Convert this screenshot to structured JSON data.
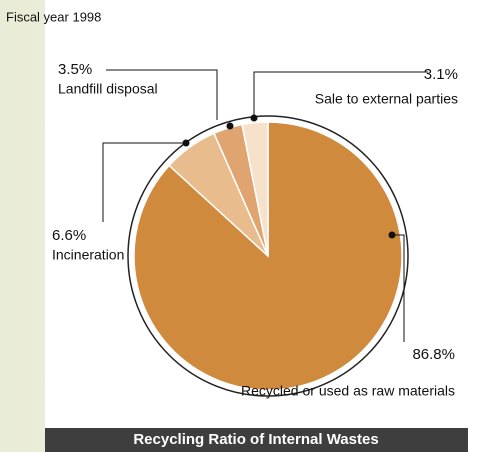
{
  "chart_data": {
    "type": "pie",
    "title": "Recycling Ratio of Internal Wastes",
    "subtitle": "Fiscal year 1998",
    "categories": [
      "Recycled or used as raw materials",
      "Incineration",
      "Landfill disposal",
      "Sale to external parties"
    ],
    "values": [
      86.8,
      6.6,
      3.5,
      3.1
    ],
    "value_labels": [
      "86.8%",
      "6.6%",
      "3.5%",
      "3.1%"
    ],
    "colors": [
      "#d08a3e",
      "#e9bc8e",
      "#dfa470",
      "#f6e2cb"
    ]
  }
}
